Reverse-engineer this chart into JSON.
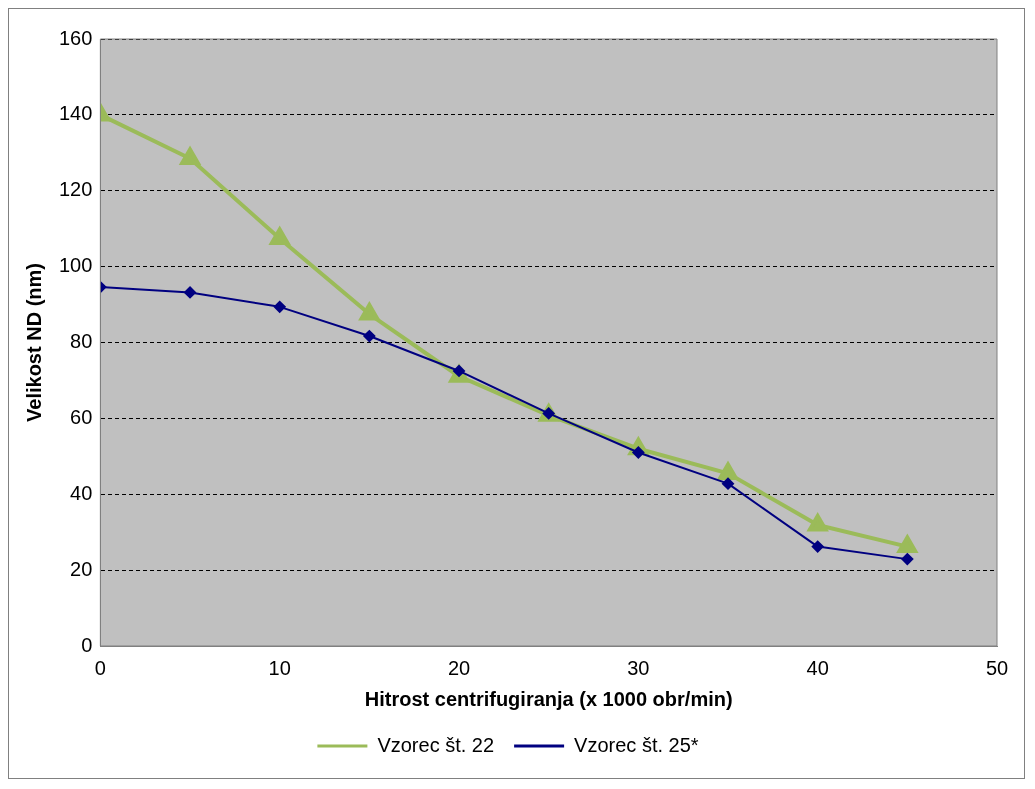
{
  "chart_data": {
    "type": "line",
    "xlabel": "Hitrost centrifugiranja (x 1000 obr/min)",
    "ylabel": "Velikost ND (nm)",
    "x": [
      0,
      5,
      10,
      15,
      20,
      25,
      30,
      35,
      40,
      45
    ],
    "xlim": [
      0,
      50
    ],
    "xticks": [
      0,
      10,
      20,
      30,
      40,
      50
    ],
    "ylim": [
      0,
      160
    ],
    "yticks": [
      0,
      20,
      40,
      60,
      80,
      100,
      120,
      140,
      160
    ],
    "grid": "y",
    "legend": "bottom",
    "series": [
      {
        "name": "Vzorec št. 22",
        "color": "#9bbb59",
        "marker": "triangle",
        "values": [
          140,
          128.5,
          107.4,
          87.5,
          71.1,
          60.8,
          52,
          45.5,
          31.9,
          26.2
        ]
      },
      {
        "name": "Vzorec št. 25*",
        "color": "#000080",
        "marker": "diamond",
        "values": [
          94.6,
          93.2,
          89.4,
          81.7,
          72.5,
          61.3,
          51,
          42.8,
          26.2,
          22.9
        ]
      }
    ]
  }
}
